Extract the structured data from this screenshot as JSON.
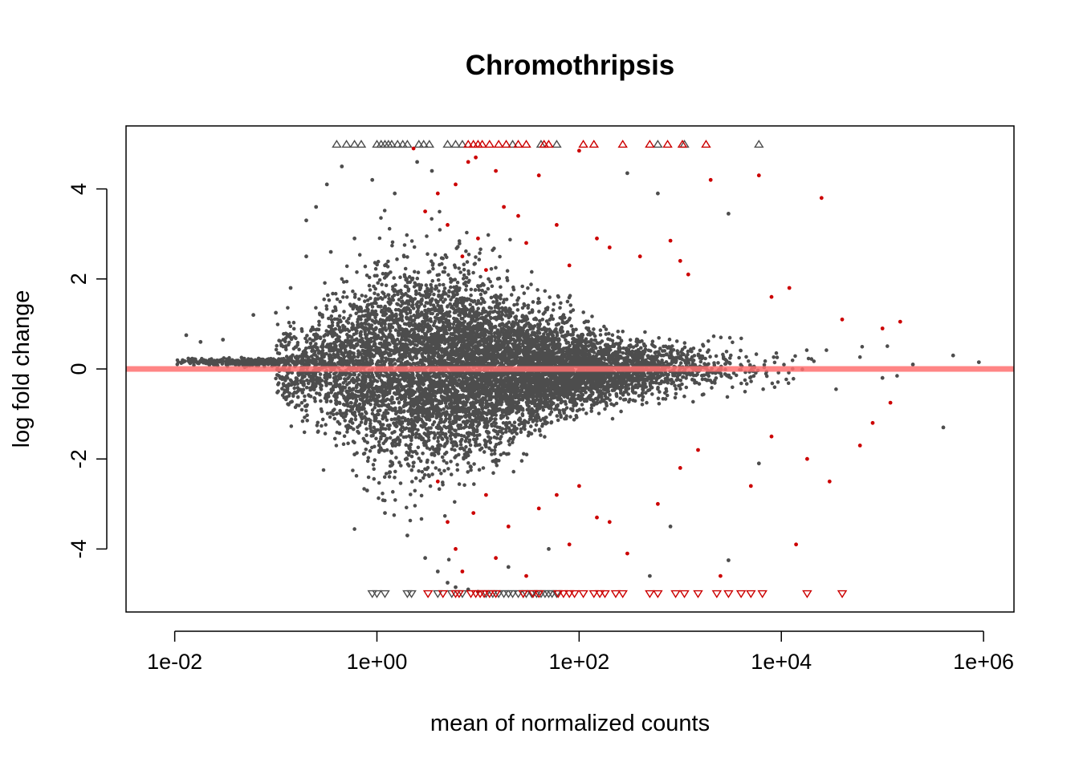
{
  "chart_data": {
    "type": "scatter",
    "title": "Chromothripsis",
    "xlabel": "mean of normalized counts",
    "ylabel": "log fold change",
    "x_scale": "log10",
    "xlim": [
      0.0033,
      2000000
    ],
    "ylim": [
      -5.4,
      5.4
    ],
    "x_ticks": [
      {
        "value": 0.01,
        "label": "1e-02"
      },
      {
        "value": 1,
        "label": "1e+00"
      },
      {
        "value": 100,
        "label": "1e+02"
      },
      {
        "value": 10000,
        "label": "1e+04"
      },
      {
        "value": 1000000,
        "label": "1e+06"
      }
    ],
    "y_ticks": [
      {
        "value": -4,
        "label": "-4"
      },
      {
        "value": -2,
        "label": "-2"
      },
      {
        "value": 0,
        "label": "0"
      },
      {
        "value": 2,
        "label": "2"
      },
      {
        "value": 4,
        "label": "4"
      }
    ],
    "grid": false,
    "legend": "none",
    "colors": {
      "not_significant": "#4d4d4d",
      "significant": "#cc0000",
      "reference_line": "#ff7070"
    },
    "reference_line": {
      "y": 0
    },
    "series": [
      {
        "significant": false,
        "points": [
          [
            0.013,
            0.75
          ],
          [
            0.018,
            0.6
          ],
          [
            0.03,
            0.65
          ],
          [
            0.06,
            1.2
          ],
          [
            0.1,
            1.25
          ],
          [
            0.14,
            1.8
          ],
          [
            0.2,
            2.5
          ],
          [
            0.2,
            3.3
          ],
          [
            0.25,
            3.6
          ],
          [
            0.32,
            4.1
          ],
          [
            0.45,
            4.5
          ],
          [
            0.9,
            4.2
          ],
          [
            1.5,
            3.9
          ],
          [
            2.5,
            4.6
          ],
          [
            3.5,
            4.4
          ],
          [
            0.35,
            2.6
          ],
          [
            0.6,
            2.9
          ],
          [
            1.2,
            2.3
          ],
          [
            3000,
            3.45
          ],
          [
            300,
            4.35
          ],
          [
            600,
            3.9
          ],
          [
            0.6,
            -1.9
          ],
          [
            0.8,
            -2.7
          ],
          [
            1.2,
            -3.2
          ],
          [
            2,
            -3.7
          ],
          [
            3,
            -4.2
          ],
          [
            4,
            -4.5
          ],
          [
            5,
            -4.75
          ],
          [
            6,
            -4.85
          ],
          [
            8,
            -4.9
          ],
          [
            10,
            -4.95
          ],
          [
            20,
            -4.4
          ],
          [
            50,
            -4.0
          ],
          [
            500,
            -4.6
          ],
          [
            3000,
            -4.25
          ],
          [
            800,
            -3.5
          ],
          [
            6000,
            -2.1
          ],
          [
            400000,
            -1.3
          ],
          [
            500000,
            0.3
          ],
          [
            900000,
            0.15
          ],
          [
            200000,
            0.1
          ],
          [
            100000,
            -0.2
          ]
        ],
        "clipped_top": [
          0.4,
          0.5,
          0.6,
          0.7,
          1.0,
          1.1,
          1.2,
          1.3,
          1.4,
          1.6,
          1.8,
          2.0,
          2.6,
          2.9,
          3.3,
          5.0,
          6.0,
          7.0,
          22,
          42,
          60,
          600,
          1100,
          6000
        ],
        "clipped_bottom": [
          0.9,
          1.0,
          1.2,
          2.0,
          2.2,
          4.0,
          5.5,
          7.0,
          12,
          14,
          16,
          18,
          20,
          22,
          25,
          28,
          30,
          34,
          38,
          42,
          46,
          50,
          54,
          60
        ]
      },
      {
        "significant": true,
        "points": [
          [
            2.3,
            4.9
          ],
          [
            8,
            4.6
          ],
          [
            9.5,
            4.7
          ],
          [
            15,
            4.4
          ],
          [
            18,
            3.6
          ],
          [
            25,
            3.4
          ],
          [
            30,
            2.8
          ],
          [
            40,
            4.3
          ],
          [
            60,
            3.2
          ],
          [
            80,
            2.3
          ],
          [
            100,
            4.85
          ],
          [
            150,
            2.9
          ],
          [
            200,
            2.7
          ],
          [
            400,
            2.5
          ],
          [
            800,
            2.85
          ],
          [
            1000,
            2.4
          ],
          [
            1200,
            2.1
          ],
          [
            2000,
            4.2
          ],
          [
            6000,
            4.3
          ],
          [
            8000,
            1.6
          ],
          [
            12000,
            1.8
          ],
          [
            25000,
            3.8
          ],
          [
            40000,
            1.1
          ],
          [
            100000,
            0.9
          ],
          [
            150000,
            1.05
          ],
          [
            4,
            3.9
          ],
          [
            5,
            3.2
          ],
          [
            6,
            4.1
          ],
          [
            7,
            2.5
          ],
          [
            3,
            3.5
          ],
          [
            10,
            2.9
          ],
          [
            12,
            2.2
          ],
          [
            4,
            -2.5
          ],
          [
            5,
            -3.4
          ],
          [
            6,
            -4.0
          ],
          [
            7,
            -4.5
          ],
          [
            9,
            -3.2
          ],
          [
            12,
            -2.8
          ],
          [
            15,
            -4.2
          ],
          [
            20,
            -3.5
          ],
          [
            30,
            -4.6
          ],
          [
            40,
            -3.1
          ],
          [
            60,
            -2.8
          ],
          [
            80,
            -3.9
          ],
          [
            100,
            -2.6
          ],
          [
            150,
            -3.3
          ],
          [
            200,
            -3.4
          ],
          [
            300,
            -4.1
          ],
          [
            600,
            -3.0
          ],
          [
            1000,
            -2.2
          ],
          [
            1500,
            -1.8
          ],
          [
            2500,
            -4.6
          ],
          [
            5000,
            -2.6
          ],
          [
            8000,
            -1.5
          ],
          [
            14000,
            -3.9
          ],
          [
            18000,
            -2.0
          ],
          [
            30000,
            -2.5
          ],
          [
            60000,
            -1.7
          ],
          [
            80000,
            -1.2
          ],
          [
            120000,
            -0.75
          ]
        ],
        "clipped_top": [
          8,
          9,
          10,
          11,
          13,
          16,
          19,
          25,
          30,
          45,
          50,
          110,
          140,
          270,
          500,
          750,
          1050,
          1800
        ],
        "clipped_bottom": [
          3.2,
          4.5,
          6.0,
          6.5,
          8.5,
          9.5,
          10.5,
          11.5,
          13,
          15,
          28,
          35,
          40,
          62,
          70,
          80,
          90,
          110,
          140,
          160,
          180,
          230,
          270,
          500,
          600,
          900,
          1100,
          1500,
          2300,
          3000,
          4000,
          5000,
          6500,
          18000,
          40000
        ]
      }
    ]
  }
}
